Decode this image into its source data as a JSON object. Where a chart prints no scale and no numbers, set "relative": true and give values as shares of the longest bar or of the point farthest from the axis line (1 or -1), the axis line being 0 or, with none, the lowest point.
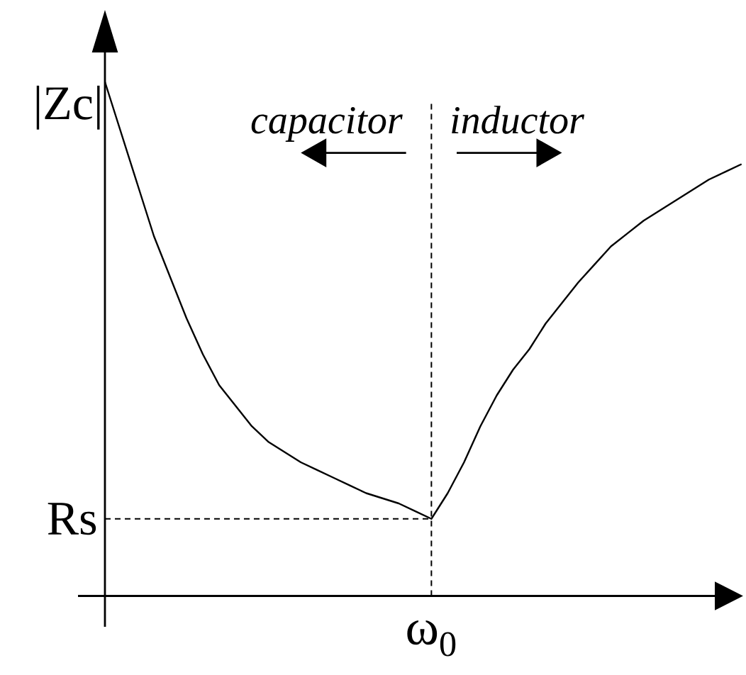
{
  "chart_data": {
    "type": "line",
    "ylabel": "|Zc|",
    "annotations": [
      "capacitor",
      "inductor",
      "ω$_{0}$"
    ],
    "categories": [
      null,
      null,
      null,
      null,
      null,
      null,
      null,
      null,
      null,
      null,
      null,
      null,
      null,
      null,
      null,
      null,
      null,
      null,
      null,
      null,
      null,
      null,
      null,
      null,
      null,
      null,
      null,
      null,
      null,
      null,
      null,
      null,
      null,
      null,
      null,
      null,
      null,
      null,
      null,
      null
    ],
    "relative": true,
    "series": [
      {
        "color": "#000000",
        "values": [
          1,
          0.9,
          0.8,
          0.7,
          0.62,
          0.54,
          0.47,
          0.41,
          0.37,
          0.33,
          0.3,
          0.28,
          0.26,
          0.245,
          0.23,
          0.215,
          0.2,
          0.19,
          0.18,
          0.165,
          0.15,
          0.2,
          0.26,
          0.33,
          0.39,
          0.44,
          0.48,
          0.53,
          0.57,
          0.61,
          0.645,
          0.68,
          0.705,
          0.73,
          0.75,
          0.77,
          0.79,
          0.81,
          0.825,
          0.84
        ]
      }
    ],
    "ref_lines": [
      {
        "axis": "y",
        "value": 0.15,
        "label": "Rs",
        "line_style": "dashed"
      }
    ]
  }
}
